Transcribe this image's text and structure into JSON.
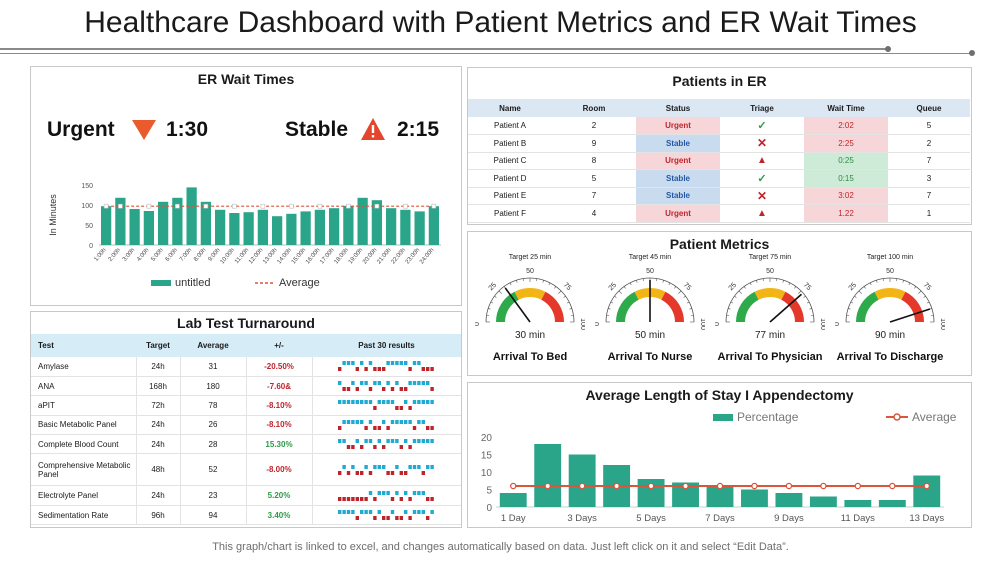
{
  "page": {
    "title": "Healthcare Dashboard with Patient Metrics and ER Wait Times",
    "footer": "This graph/chart is linked to excel, and changes automatically based on data. Just left click on it and select “Edit Data”."
  },
  "er_wait": {
    "title": "ER Wait Times",
    "urgent_label": "Urgent",
    "urgent_time": "1:30",
    "stable_label": "Stable",
    "stable_time": "2:15"
  },
  "patients_er": {
    "title": "Patients in ER",
    "columns": [
      "Name",
      "Room",
      "Status",
      "Triage",
      "Wait Time",
      "Queue"
    ],
    "rows": [
      {
        "name": "Patient A",
        "room": "2",
        "status": "Urgent",
        "triage": "check",
        "wait": "2:02",
        "wait_color": "red",
        "queue": "5"
      },
      {
        "name": "Patient B",
        "room": "9",
        "status": "Stable",
        "triage": "cross",
        "wait": "2:25",
        "wait_color": "red",
        "queue": "2"
      },
      {
        "name": "Patient C",
        "room": "8",
        "status": "Urgent",
        "triage": "warning",
        "wait": "0:25",
        "wait_color": "green",
        "queue": "7"
      },
      {
        "name": "Patient D",
        "room": "5",
        "status": "Stable",
        "triage": "check",
        "wait": "0:15",
        "wait_color": "green",
        "queue": "3"
      },
      {
        "name": "Patient E",
        "room": "7",
        "status": "Stable",
        "triage": "cross",
        "wait": "3:02",
        "wait_color": "red",
        "queue": "7"
      },
      {
        "name": "Patient F",
        "room": "4",
        "status": "Urgent",
        "triage": "warning",
        "wait": "1.22",
        "wait_color": "red",
        "queue": "1"
      }
    ]
  },
  "lab": {
    "title": "Lab Test Turnaround",
    "columns": [
      "Test",
      "Target",
      "Average",
      "+/-",
      "Past 30 results"
    ],
    "rows": [
      {
        "test": "Amylase",
        "target": "24h",
        "average": "31",
        "diff": "-20.50%",
        "sign": "neg",
        "pattern": "0111010100011111011000"
      },
      {
        "test": "ANA",
        "target": "168h",
        "average": "180",
        "diff": "-7.60&",
        "sign": "neg",
        "pattern": "1001011011010100111110"
      },
      {
        "test": "aPIT",
        "target": "72h",
        "average": "78",
        "diff": "-8.10%",
        "sign": "neg",
        "pattern": "1111111101111001011111"
      },
      {
        "test": "Basic Metabolic Panel",
        "target": "24h",
        "average": "26",
        "diff": "-8.10%",
        "sign": "neg",
        "pattern": "0111110100101111101100"
      },
      {
        "test": "Complete  Blood Count",
        "target": "24h",
        "average": "28",
        "diff": "15.30%",
        "sign": "pos",
        "pattern": "1100101101011101011111"
      },
      {
        "test": "Comprehensive Metabolic Panel",
        "target": "48h",
        "average": "52",
        "diff": "-8.00%",
        "sign": "neg",
        "pattern": "0101001011100100111011"
      },
      {
        "test": "Electrolyte Panel",
        "target": "24h",
        "average": "23",
        "diff": "5.20%",
        "sign": "pos",
        "pattern": "0000000101110101011100"
      },
      {
        "test": "Sedimentation  Rate",
        "target": "96h",
        "average": "94",
        "diff": "3.40%",
        "sign": "pos",
        "pattern": "1111011101001001011101"
      }
    ]
  },
  "patient_metrics": {
    "title": "Patient Metrics",
    "gauges": [
      {
        "label": "Arrival To Bed",
        "target": "Target 25 min",
        "value_text": "30 min",
        "value": 30
      },
      {
        "label": "Arrival To Nurse",
        "target": "Target 45 min",
        "value_text": "50 min",
        "value": 50
      },
      {
        "label": "Arrival To Physician",
        "target": "Target 75 min",
        "value_text": "77 min",
        "value": 77
      },
      {
        "label": "Arrival To Discharge",
        "target": "Target 100 min",
        "value_text": "90 min",
        "value": 90
      }
    ],
    "tick_labels": [
      "0",
      "50",
      "100",
      "25",
      "75"
    ]
  },
  "chart_data": [
    {
      "type": "bar",
      "title": "ER Wait Times",
      "ylabel": "In Minutes",
      "ylim": [
        0,
        150
      ],
      "yticks": [
        0,
        50,
        100,
        150
      ],
      "categories": [
        "1:00h",
        "2:00h",
        "3:00h",
        "4:00h",
        "5:00h",
        "6:00h",
        "7:00h",
        "8:00h",
        "9:00h",
        "10:00h",
        "11:00h",
        "12:00h",
        "13:00h",
        "14:00h",
        "15:00h",
        "16:00h",
        "17:00h",
        "18:00h",
        "19:00h",
        "20:00h",
        "21:00h",
        "22:00h",
        "23:00h",
        "24:00h"
      ],
      "series": [
        {
          "name": "untitled",
          "values": [
            97,
            118,
            90,
            85,
            108,
            118,
            144,
            108,
            88,
            80,
            82,
            88,
            72,
            78,
            84,
            88,
            92,
            98,
            118,
            112,
            92,
            88,
            84,
            97
          ],
          "color": "#2aa58a"
        },
        {
          "name": "Average",
          "values": [
            97,
            97,
            97,
            97,
            97,
            97,
            97,
            97,
            97,
            97,
            97,
            97,
            97,
            97,
            97,
            97,
            97,
            97,
            97,
            97,
            97,
            97,
            97,
            97
          ],
          "color": "#d9553b"
        }
      ],
      "legend": "bottom"
    },
    {
      "type": "bar",
      "title": "Average Length of Stay I Appendectomy",
      "ylim": [
        0,
        20
      ],
      "yticks": [
        0,
        5,
        10,
        15,
        20
      ],
      "categories": [
        "1 Day",
        "2 Days",
        "3 Days",
        "4 Days",
        "5 Days",
        "6 Days",
        "7 Days",
        "8 Days",
        "9 Days",
        "10 Days",
        "11 Days",
        "12 Days",
        "13 Days"
      ],
      "xtick_labels_shown": [
        "1 Day",
        "3 Days",
        "5 Days",
        "7 Days",
        "9 Days",
        "11 Days",
        "13 Days"
      ],
      "series": [
        {
          "name": "Percentage",
          "values": [
            4,
            18,
            15,
            12,
            8,
            7,
            6,
            5,
            4,
            3,
            2,
            2,
            9
          ],
          "color": "#2aa58a"
        },
        {
          "name": "Average",
          "values": [
            6,
            6,
            6,
            6,
            6,
            6,
            6,
            6,
            6,
            6,
            6,
            6,
            6
          ],
          "color": "#d9553b"
        }
      ],
      "legend": "top"
    }
  ]
}
